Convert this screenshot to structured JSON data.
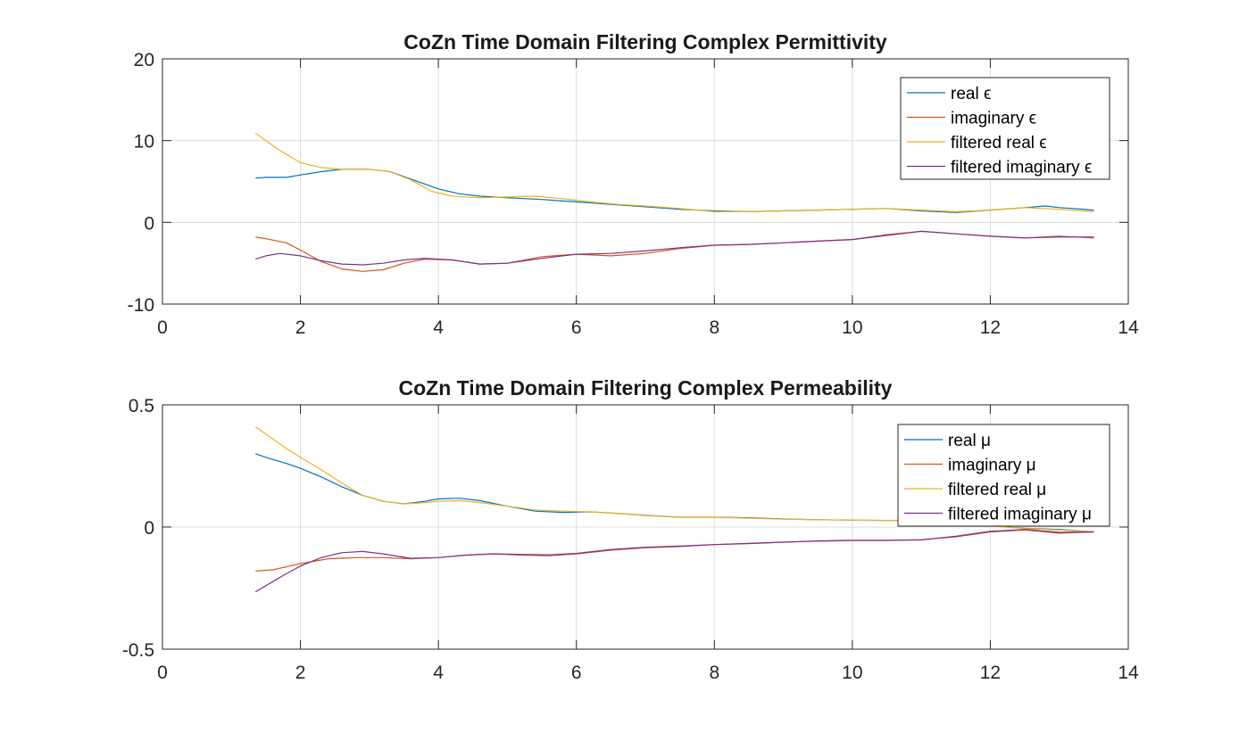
{
  "chart_data": [
    {
      "type": "line",
      "title": "CoZn Time Domain Filtering Complex Permittivity",
      "xlabel": "",
      "ylabel": "",
      "xlim": [
        0,
        14
      ],
      "ylim": [
        -10,
        20
      ],
      "xticks": [
        0,
        2,
        4,
        6,
        8,
        10,
        12,
        14
      ],
      "yticks": [
        -10,
        0,
        10,
        20
      ],
      "xtick_labels": [
        "0",
        "2",
        "4",
        "6",
        "8",
        "10",
        "12",
        "14"
      ],
      "ytick_labels": [
        "-10",
        "0",
        "10",
        "20"
      ],
      "grid": true,
      "legend_position": "top-right",
      "series": [
        {
          "name": "real ϵ",
          "color": "#0072BD",
          "x": [
            1.35,
            1.5,
            1.8,
            2.0,
            2.3,
            2.6,
            3.0,
            3.3,
            3.6,
            4.0,
            4.3,
            4.6,
            5.0,
            5.5,
            6.0,
            6.5,
            7.0,
            7.5,
            8.0,
            8.5,
            9.0,
            9.5,
            10.0,
            10.5,
            11.0,
            11.5,
            12.0,
            12.5,
            12.8,
            13.0,
            13.2,
            13.5
          ],
          "y": [
            5.4,
            5.5,
            5.5,
            5.8,
            6.2,
            6.5,
            6.5,
            6.2,
            5.3,
            4.1,
            3.5,
            3.2,
            3.0,
            2.8,
            2.5,
            2.2,
            1.9,
            1.6,
            1.4,
            1.3,
            1.4,
            1.5,
            1.6,
            1.7,
            1.4,
            1.2,
            1.5,
            1.8,
            2.0,
            1.8,
            1.7,
            1.5
          ]
        },
        {
          "name": "imaginary ϵ",
          "color": "#D95319",
          "x": [
            1.35,
            1.5,
            1.8,
            2.0,
            2.3,
            2.6,
            2.9,
            3.2,
            3.5,
            3.8,
            4.2,
            4.6,
            5.0,
            5.5,
            6.0,
            6.5,
            7.0,
            7.5,
            8.0,
            8.5,
            9.0,
            9.5,
            10.0,
            10.5,
            11.0,
            11.5,
            12.0,
            12.5,
            13.0,
            13.5
          ],
          "y": [
            -1.8,
            -2.0,
            -2.5,
            -3.4,
            -4.8,
            -5.7,
            -6.0,
            -5.8,
            -5.0,
            -4.5,
            -4.6,
            -5.1,
            -5.0,
            -4.2,
            -3.9,
            -4.1,
            -3.8,
            -3.2,
            -2.8,
            -2.7,
            -2.5,
            -2.3,
            -2.1,
            -1.5,
            -1.1,
            -1.4,
            -1.7,
            -1.9,
            -1.7,
            -1.9
          ]
        },
        {
          "name": "filtered real ϵ",
          "color": "#EDB120",
          "x": [
            1.35,
            1.5,
            1.7,
            2.0,
            2.3,
            2.6,
            3.0,
            3.3,
            3.6,
            3.9,
            4.2,
            4.6,
            5.0,
            5.4,
            5.8,
            6.2,
            6.6,
            7.0,
            7.5,
            8.0,
            8.5,
            9.0,
            9.5,
            10.0,
            10.5,
            11.0,
            11.5,
            12.0,
            12.5,
            13.0,
            13.5
          ],
          "y": [
            10.9,
            10.0,
            8.8,
            7.3,
            6.7,
            6.5,
            6.5,
            6.2,
            5.2,
            3.8,
            3.2,
            3.0,
            3.1,
            3.2,
            2.9,
            2.5,
            2.2,
            2.0,
            1.7,
            1.3,
            1.3,
            1.4,
            1.5,
            1.6,
            1.7,
            1.5,
            1.3,
            1.5,
            1.8,
            1.6,
            1.3
          ]
        },
        {
          "name": "filtered imaginary ϵ",
          "color": "#7E2F8E",
          "x": [
            1.35,
            1.5,
            1.7,
            2.0,
            2.3,
            2.6,
            2.9,
            3.2,
            3.5,
            3.8,
            4.2,
            4.6,
            5.0,
            5.5,
            6.0,
            6.5,
            7.0,
            7.5,
            8.0,
            8.5,
            9.0,
            9.5,
            10.0,
            10.5,
            11.0,
            11.5,
            12.0,
            12.5,
            13.0,
            13.5
          ],
          "y": [
            -4.5,
            -4.1,
            -3.8,
            -4.1,
            -4.7,
            -5.1,
            -5.2,
            -5.0,
            -4.6,
            -4.4,
            -4.6,
            -5.1,
            -5.0,
            -4.4,
            -3.9,
            -3.8,
            -3.5,
            -3.1,
            -2.8,
            -2.7,
            -2.5,
            -2.3,
            -2.1,
            -1.6,
            -1.1,
            -1.4,
            -1.7,
            -1.9,
            -1.8,
            -1.8
          ]
        }
      ]
    },
    {
      "type": "line",
      "title": "CoZn Time Domain Filtering Complex Permeability",
      "xlabel": "",
      "ylabel": "",
      "xlim": [
        0,
        14
      ],
      "ylim": [
        -0.5,
        0.5
      ],
      "xticks": [
        0,
        2,
        4,
        6,
        8,
        10,
        12,
        14
      ],
      "yticks": [
        -0.5,
        0,
        0.5
      ],
      "xtick_labels": [
        "0",
        "2",
        "4",
        "6",
        "8",
        "10",
        "12",
        "14"
      ],
      "ytick_labels": [
        "-0.5",
        "0",
        "0.5"
      ],
      "grid": true,
      "legend_position": "top-right",
      "series": [
        {
          "name": "real μ",
          "color": "#0072BD",
          "x": [
            1.35,
            1.5,
            1.8,
            2.0,
            2.3,
            2.6,
            2.9,
            3.2,
            3.5,
            3.8,
            4.0,
            4.3,
            4.6,
            5.0,
            5.4,
            5.8,
            6.2,
            6.6,
            7.0,
            7.5,
            8.0,
            8.5,
            9.0,
            9.5,
            10.0,
            10.5,
            11.0,
            11.5,
            12.0,
            12.5,
            13.0,
            13.5
          ],
          "y": [
            0.3,
            0.285,
            0.26,
            0.24,
            0.205,
            0.165,
            0.13,
            0.105,
            0.095,
            0.105,
            0.115,
            0.118,
            0.108,
            0.085,
            0.065,
            0.06,
            0.062,
            0.056,
            0.048,
            0.04,
            0.04,
            0.038,
            0.033,
            0.03,
            0.028,
            0.027,
            0.028,
            0.018,
            0.005,
            -0.005,
            -0.01,
            -0.02
          ]
        },
        {
          "name": "imaginary μ",
          "color": "#D95319",
          "x": [
            1.35,
            1.6,
            2.0,
            2.4,
            2.8,
            3.2,
            3.6,
            4.0,
            4.4,
            4.8,
            5.2,
            5.6,
            6.0,
            6.5,
            7.0,
            7.5,
            8.0,
            8.5,
            9.0,
            9.5,
            10.0,
            10.5,
            11.0,
            11.5,
            12.0,
            12.5,
            13.0,
            13.5
          ],
          "y": [
            -0.18,
            -0.175,
            -0.15,
            -0.13,
            -0.125,
            -0.125,
            -0.13,
            -0.125,
            -0.115,
            -0.11,
            -0.115,
            -0.118,
            -0.11,
            -0.095,
            -0.085,
            -0.08,
            -0.072,
            -0.068,
            -0.062,
            -0.058,
            -0.055,
            -0.055,
            -0.052,
            -0.04,
            -0.02,
            -0.012,
            -0.025,
            -0.02
          ]
        },
        {
          "name": "filtered real μ",
          "color": "#EDB120",
          "x": [
            1.35,
            1.5,
            1.8,
            2.0,
            2.3,
            2.6,
            2.9,
            3.2,
            3.5,
            3.8,
            4.0,
            4.3,
            4.6,
            5.0,
            5.4,
            5.8,
            6.2,
            6.6,
            7.0,
            7.5,
            8.0,
            8.5,
            9.0,
            9.5,
            10.0,
            10.5,
            11.0,
            11.5,
            12.0,
            12.5,
            13.0,
            13.5
          ],
          "y": [
            0.41,
            0.38,
            0.32,
            0.285,
            0.235,
            0.18,
            0.13,
            0.105,
            0.095,
            0.1,
            0.105,
            0.108,
            0.1,
            0.085,
            0.07,
            0.065,
            0.062,
            0.055,
            0.047,
            0.04,
            0.04,
            0.036,
            0.032,
            0.03,
            0.028,
            0.027,
            0.026,
            0.016,
            0.004,
            -0.006,
            -0.012,
            -0.02
          ]
        },
        {
          "name": "filtered imaginary μ",
          "color": "#7E2F8E",
          "x": [
            1.35,
            1.5,
            1.8,
            2.0,
            2.3,
            2.6,
            2.9,
            3.2,
            3.6,
            4.0,
            4.4,
            4.8,
            5.2,
            5.6,
            6.0,
            6.5,
            7.0,
            7.5,
            8.0,
            8.5,
            9.0,
            9.5,
            10.0,
            10.5,
            11.0,
            11.5,
            12.0,
            12.5,
            13.0,
            13.5
          ],
          "y": [
            -0.265,
            -0.24,
            -0.19,
            -0.16,
            -0.125,
            -0.105,
            -0.1,
            -0.11,
            -0.128,
            -0.125,
            -0.115,
            -0.11,
            -0.112,
            -0.114,
            -0.108,
            -0.092,
            -0.083,
            -0.078,
            -0.072,
            -0.067,
            -0.062,
            -0.057,
            -0.054,
            -0.054,
            -0.053,
            -0.038,
            -0.018,
            -0.01,
            -0.022,
            -0.02
          ]
        }
      ]
    }
  ]
}
